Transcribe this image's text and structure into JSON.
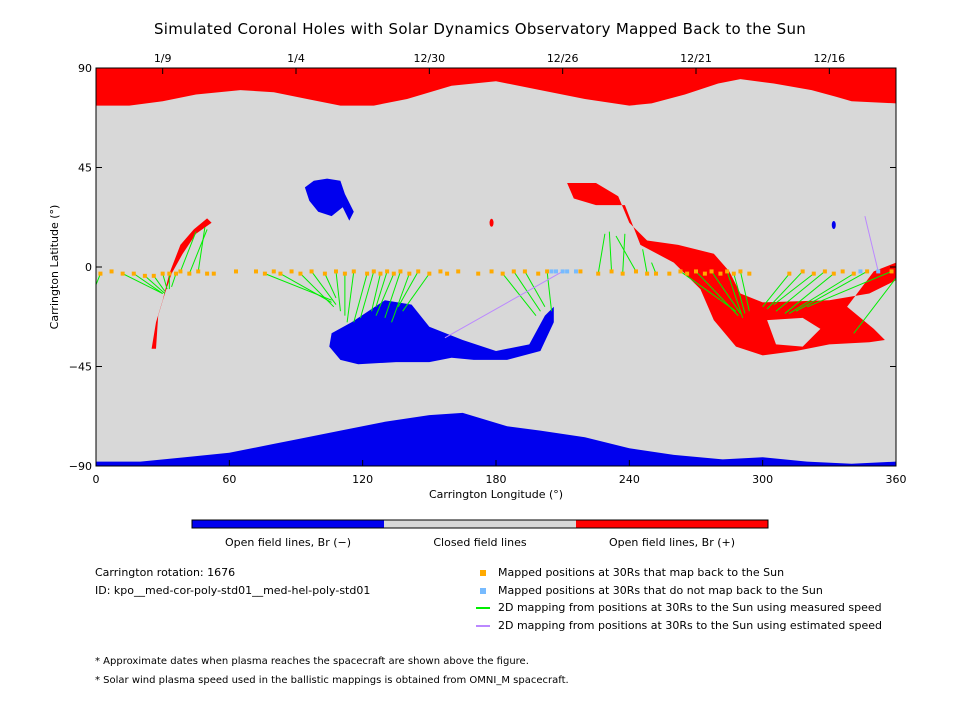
{
  "chart_data": {
    "type": "map",
    "title": "Simulated Coronal Holes with Solar Dynamics Observatory Mapped Back to the Sun",
    "xlabel": "Carrington Longitude (°)",
    "ylabel": "Carrington Latitude (°)",
    "xlim": [
      0,
      360
    ],
    "ylim": [
      -90,
      90
    ],
    "x_ticks": [
      0,
      60,
      120,
      180,
      240,
      300,
      360
    ],
    "y_ticks": [
      -90,
      -45,
      0,
      45,
      90
    ],
    "y_tick_labels": [
      "−90",
      "−45",
      "0",
      "45",
      "90"
    ],
    "date_ticks": [
      {
        "label": "1/9",
        "lon": 30
      },
      {
        "label": "1/4",
        "lon": 90
      },
      {
        "label": "12/30",
        "lon": 150
      },
      {
        "label": "12/26",
        "lon": 210
      },
      {
        "label": "12/21",
        "lon": 270
      },
      {
        "label": "12/16",
        "lon": 330
      }
    ],
    "colors": {
      "closed": "#d8d8d8",
      "open_negative": "#0000ee",
      "open_positive": "#ff0000",
      "mapped_back": "#ffaa00",
      "not_mapped": "#77bbff",
      "measured_speed": "#00ee00",
      "estimated_speed": "#bb88ff"
    },
    "regions": {
      "north_polar_positive": [
        [
          0,
          90
        ],
        [
          360,
          90
        ],
        [
          360,
          74
        ],
        [
          340,
          75
        ],
        [
          333,
          77
        ],
        [
          322,
          80
        ],
        [
          305,
          83
        ],
        [
          290,
          85
        ],
        [
          280,
          83
        ],
        [
          265,
          78
        ],
        [
          250,
          74
        ],
        [
          240,
          73
        ],
        [
          220,
          76
        ],
        [
          200,
          80
        ],
        [
          180,
          84
        ],
        [
          160,
          82
        ],
        [
          140,
          76
        ],
        [
          125,
          73
        ],
        [
          110,
          73
        ],
        [
          95,
          76
        ],
        [
          80,
          79
        ],
        [
          65,
          80
        ],
        [
          45,
          78
        ],
        [
          30,
          75
        ],
        [
          15,
          73
        ],
        [
          0,
          73
        ]
      ],
      "south_polar_negative": [
        [
          0,
          -90
        ],
        [
          360,
          -90
        ],
        [
          360,
          -88
        ],
        [
          340,
          -89
        ],
        [
          320,
          -88
        ],
        [
          300,
          -86
        ],
        [
          282,
          -87
        ],
        [
          260,
          -85
        ],
        [
          240,
          -82
        ],
        [
          220,
          -77
        ],
        [
          200,
          -74
        ],
        [
          185,
          -72
        ],
        [
          165,
          -66
        ],
        [
          150,
          -67
        ],
        [
          130,
          -70
        ],
        [
          110,
          -74
        ],
        [
          90,
          -78
        ],
        [
          80,
          -80
        ],
        [
          60,
          -84
        ],
        [
          40,
          -86
        ],
        [
          20,
          -88
        ],
        [
          0,
          -88
        ]
      ],
      "equatorial_negative": [
        [
          106,
          -30
        ],
        [
          115,
          -25
        ],
        [
          130,
          -15
        ],
        [
          142,
          -17
        ],
        [
          150,
          -27
        ],
        [
          165,
          -33
        ],
        [
          180,
          -38
        ],
        [
          195,
          -35
        ],
        [
          202,
          -22
        ],
        [
          206,
          -18
        ],
        [
          206,
          -25
        ],
        [
          200,
          -38
        ],
        [
          185,
          -42
        ],
        [
          170,
          -42
        ],
        [
          160,
          -41
        ],
        [
          150,
          -43
        ],
        [
          135,
          -43
        ],
        [
          118,
          -44
        ],
        [
          110,
          -42
        ],
        [
          105,
          -36
        ]
      ],
      "northern_negative_patch": [
        [
          94,
          36
        ],
        [
          98,
          39
        ],
        [
          104,
          40
        ],
        [
          110,
          39
        ],
        [
          112,
          33
        ],
        [
          116,
          25
        ],
        [
          114,
          21
        ],
        [
          111,
          27
        ],
        [
          106,
          23
        ],
        [
          100,
          25
        ],
        [
          96,
          30
        ]
      ],
      "equatorial_positive_main": [
        [
          212,
          38
        ],
        [
          225,
          38
        ],
        [
          235,
          32
        ],
        [
          240,
          20
        ],
        [
          248,
          12
        ],
        [
          262,
          10
        ],
        [
          278,
          6
        ],
        [
          285,
          -2
        ],
        [
          290,
          -12
        ],
        [
          300,
          -16
        ],
        [
          330,
          -15
        ],
        [
          348,
          -12
        ],
        [
          360,
          -6
        ],
        [
          360,
          2
        ],
        [
          350,
          -2
        ],
        [
          338,
          -18
        ],
        [
          350,
          -28
        ],
        [
          355,
          -33
        ],
        [
          348,
          -34
        ],
        [
          330,
          -35
        ],
        [
          315,
          -38
        ],
        [
          300,
          -40
        ],
        [
          288,
          -36
        ],
        [
          278,
          -24
        ],
        [
          272,
          -10
        ],
        [
          260,
          2
        ],
        [
          245,
          10
        ],
        [
          238,
          28
        ],
        [
          225,
          28
        ],
        [
          215,
          31
        ]
      ],
      "positive_ring_hole": [
        [
          302,
          -24
        ],
        [
          318,
          -23
        ],
        [
          326,
          -28
        ],
        [
          318,
          -36
        ],
        [
          306,
          -35
        ]
      ],
      "west_positive_stripe": [
        [
          25,
          -37
        ],
        [
          27,
          -25
        ],
        [
          30,
          -15
        ],
        [
          33,
          -3
        ],
        [
          38,
          10
        ],
        [
          44,
          17
        ],
        [
          50,
          22
        ],
        [
          52,
          20
        ],
        [
          45,
          15
        ],
        [
          39,
          6
        ],
        [
          34,
          -3
        ],
        [
          31,
          -12
        ],
        [
          28,
          -22
        ],
        [
          27,
          -37
        ]
      ],
      "small_patches": [
        {
          "polarity": "positive",
          "lon": 178,
          "lat": 20
        },
        {
          "polarity": "negative",
          "lon": 332,
          "lat": 19
        }
      ]
    },
    "mapped_back_points": [
      [
        2,
        -3
      ],
      [
        7,
        -2
      ],
      [
        12,
        -3
      ],
      [
        17,
        -3
      ],
      [
        22,
        -4
      ],
      [
        26,
        -4
      ],
      [
        30,
        -3
      ],
      [
        33,
        -3
      ],
      [
        36,
        -3
      ],
      [
        38,
        -2
      ],
      [
        42,
        -3
      ],
      [
        46,
        -2
      ],
      [
        50,
        -3
      ],
      [
        53,
        -3
      ],
      [
        63,
        -2
      ],
      [
        72,
        -2
      ],
      [
        76,
        -3
      ],
      [
        80,
        -2
      ],
      [
        83,
        -3
      ],
      [
        88,
        -2
      ],
      [
        92,
        -3
      ],
      [
        97,
        -2
      ],
      [
        103,
        -3
      ],
      [
        108,
        -2
      ],
      [
        112,
        -3
      ],
      [
        116,
        -2
      ],
      [
        122,
        -3
      ],
      [
        125,
        -2
      ],
      [
        128,
        -3
      ],
      [
        131,
        -2
      ],
      [
        134,
        -3
      ],
      [
        137,
        -2
      ],
      [
        141,
        -3
      ],
      [
        145,
        -2
      ],
      [
        150,
        -3
      ],
      [
        155,
        -2
      ],
      [
        158,
        -3
      ],
      [
        163,
        -2
      ],
      [
        172,
        -3
      ],
      [
        178,
        -2
      ],
      [
        183,
        -3
      ],
      [
        188,
        -2
      ],
      [
        193,
        -2
      ],
      [
        199,
        -3
      ],
      [
        203,
        -2
      ],
      [
        218,
        -2
      ],
      [
        226,
        -3
      ],
      [
        232,
        -2
      ],
      [
        237,
        -3
      ],
      [
        243,
        -2
      ],
      [
        248,
        -3
      ],
      [
        252,
        -3
      ],
      [
        258,
        -3
      ],
      [
        263,
        -2
      ],
      [
        266,
        -3
      ],
      [
        270,
        -2
      ],
      [
        274,
        -3
      ],
      [
        277,
        -2
      ],
      [
        281,
        -3
      ],
      [
        284,
        -2
      ],
      [
        287,
        -3
      ],
      [
        290,
        -2
      ],
      [
        294,
        -3
      ],
      [
        312,
        -3
      ],
      [
        318,
        -2
      ],
      [
        323,
        -3
      ],
      [
        328,
        -2
      ],
      [
        332,
        -3
      ],
      [
        336,
        -2
      ],
      [
        341,
        -3
      ],
      [
        347,
        -2
      ],
      [
        358,
        -2
      ]
    ],
    "not_mapped_points": [
      [
        205,
        -2
      ],
      [
        207,
        -2
      ],
      [
        210,
        -2
      ],
      [
        212,
        -2
      ],
      [
        216,
        -2
      ],
      [
        344,
        -2
      ],
      [
        352,
        -2
      ]
    ],
    "measured_speed_lines": [
      [
        [
          2,
          -3
        ],
        [
          0,
          -8
        ]
      ],
      [
        [
          12,
          -3
        ],
        [
          30,
          -12
        ]
      ],
      [
        [
          17,
          -3
        ],
        [
          30,
          -12
        ]
      ],
      [
        [
          22,
          -4
        ],
        [
          31,
          -12
        ]
      ],
      [
        [
          26,
          -4
        ],
        [
          31,
          -11
        ]
      ],
      [
        [
          30,
          -3
        ],
        [
          32,
          -10
        ]
      ],
      [
        [
          33,
          -3
        ],
        [
          33,
          -10
        ]
      ],
      [
        [
          36,
          -3
        ],
        [
          34,
          -9
        ]
      ],
      [
        [
          38,
          -2
        ],
        [
          45,
          16
        ]
      ],
      [
        [
          42,
          -3
        ],
        [
          50,
          17
        ]
      ],
      [
        [
          46,
          -2
        ],
        [
          49,
          18
        ]
      ],
      [
        [
          76,
          -3
        ],
        [
          106,
          -15
        ]
      ],
      [
        [
          83,
          -3
        ],
        [
          106,
          -16
        ]
      ],
      [
        [
          92,
          -3
        ],
        [
          107,
          -18
        ]
      ],
      [
        [
          97,
          -2
        ],
        [
          108,
          -17
        ]
      ],
      [
        [
          103,
          -3
        ],
        [
          108,
          -14
        ]
      ],
      [
        [
          108,
          -2
        ],
        [
          110,
          -20
        ]
      ],
      [
        [
          112,
          -3
        ],
        [
          112,
          -22
        ]
      ],
      [
        [
          116,
          -2
        ],
        [
          113,
          -25
        ]
      ],
      [
        [
          122,
          -3
        ],
        [
          116,
          -25
        ]
      ],
      [
        [
          125,
          -2
        ],
        [
          119,
          -23
        ]
      ],
      [
        [
          128,
          -3
        ],
        [
          124,
          -20
        ]
      ],
      [
        [
          131,
          -2
        ],
        [
          126,
          -18
        ]
      ],
      [
        [
          134,
          -3
        ],
        [
          126,
          -22
        ]
      ],
      [
        [
          137,
          -2
        ],
        [
          130,
          -23
        ]
      ],
      [
        [
          141,
          -3
        ],
        [
          133,
          -25
        ]
      ],
      [
        [
          145,
          -2
        ],
        [
          136,
          -18
        ]
      ],
      [
        [
          150,
          -3
        ],
        [
          138,
          -20
        ]
      ],
      [
        [
          183,
          -3
        ],
        [
          198,
          -22
        ]
      ],
      [
        [
          188,
          -2
        ],
        [
          200,
          -20
        ]
      ],
      [
        [
          193,
          -2
        ],
        [
          202,
          -18
        ]
      ],
      [
        [
          203,
          -2
        ],
        [
          205,
          -20
        ]
      ],
      [
        [
          226,
          -3
        ],
        [
          229,
          15
        ]
      ],
      [
        [
          232,
          -2
        ],
        [
          231,
          16
        ]
      ],
      [
        [
          237,
          -3
        ],
        [
          238,
          15
        ]
      ],
      [
        [
          243,
          -2
        ],
        [
          234,
          14
        ]
      ],
      [
        [
          248,
          -3
        ],
        [
          246,
          8
        ]
      ],
      [
        [
          252,
          -3
        ],
        [
          250,
          2
        ]
      ],
      [
        [
          263,
          -2
        ],
        [
          288,
          -20
        ]
      ],
      [
        [
          270,
          -2
        ],
        [
          289,
          -22
        ]
      ],
      [
        [
          277,
          -2
        ],
        [
          290,
          -21
        ]
      ],
      [
        [
          284,
          -2
        ],
        [
          291,
          -23
        ]
      ],
      [
        [
          287,
          -3
        ],
        [
          292,
          -21
        ]
      ],
      [
        [
          290,
          -2
        ],
        [
          294,
          -20
        ]
      ],
      [
        [
          312,
          -3
        ],
        [
          300,
          -18
        ]
      ],
      [
        [
          318,
          -2
        ],
        [
          302,
          -19
        ]
      ],
      [
        [
          323,
          -3
        ],
        [
          305,
          -17
        ]
      ],
      [
        [
          328,
          -2
        ],
        [
          306,
          -20
        ]
      ],
      [
        [
          332,
          -3
        ],
        [
          310,
          -21
        ]
      ],
      [
        [
          341,
          -3
        ],
        [
          312,
          -21
        ]
      ],
      [
        [
          347,
          -2
        ],
        [
          315,
          -20
        ]
      ],
      [
        [
          358,
          -2
        ],
        [
          320,
          -18
        ]
      ],
      [
        [
          360,
          -5
        ],
        [
          341,
          -30
        ]
      ]
    ],
    "estimated_speed_lines": [
      [
        [
          210,
          -2
        ],
        [
          157,
          -32
        ]
      ],
      [
        [
          352,
          -2
        ],
        [
          346,
          23
        ]
      ]
    ],
    "colorbar": [
      {
        "label": "Open field lines, Br (−)",
        "color": "#0000ee"
      },
      {
        "label": "Closed field lines",
        "color": "#d8d8d8"
      },
      {
        "label": "Open field lines, Br (+)",
        "color": "#ff0000"
      }
    ],
    "legend": [
      {
        "label": "Mapped positions at 30Rs that map back to the Sun",
        "kind": "marker",
        "color": "#ffaa00"
      },
      {
        "label": "Mapped positions at 30Rs that do not map back to the Sun",
        "kind": "marker",
        "color": "#77bbff"
      },
      {
        "label": "2D mapping from positions at 30Rs to the Sun using measured speed",
        "kind": "line",
        "color": "#00ee00"
      },
      {
        "label": "2D mapping from positions at 30Rs to the Sun using estimated speed",
        "kind": "line",
        "color": "#bb88ff"
      }
    ]
  },
  "info": {
    "rotation": "Carrington rotation: 1676",
    "id": "ID: kpo__med-cor-poly-std01__med-hel-poly-std01"
  },
  "notes": [
    "* Approximate dates when plasma reaches the spacecraft are shown above the figure.",
    "* Solar wind plasma speed used in the ballistic mappings is obtained from OMNI_M spacecraft."
  ]
}
